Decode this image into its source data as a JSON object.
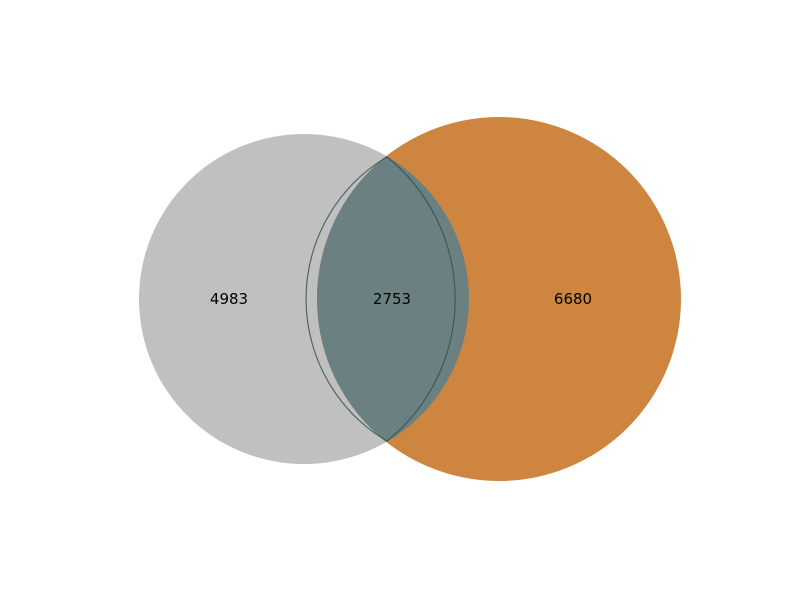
{
  "venn": {
    "sets": [
      {
        "name": "",
        "only_count": "4983",
        "color": "#c0c0c0"
      },
      {
        "name": "",
        "only_count": "6680",
        "color": "#cd853f"
      }
    ],
    "intersection": {
      "count": "2753",
      "color": "#6b8080"
    },
    "outline_color": "#2f4f4f"
  }
}
